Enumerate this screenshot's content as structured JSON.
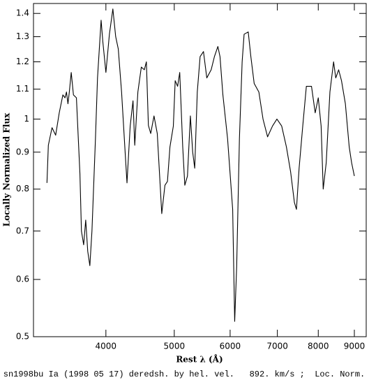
{
  "chart_data": {
    "type": "line",
    "title": "sn1998bu Ia (1998 05 17) deredsh. by hel. vel.   892. km/s ;  Loc. Norm.",
    "xlabel": "Rest λ (Å)",
    "ylabel": "Locally Normalized Flux",
    "xscale": "log",
    "yscale": "log",
    "xlim": [
      3158,
      9355
    ],
    "ylim": [
      0.5,
      1.445
    ],
    "xticks": [
      4000,
      5000,
      6000,
      7000,
      8000,
      9000
    ],
    "yticks": [
      0.5,
      0.6,
      0.7,
      0.8,
      0.9,
      1,
      1.1,
      1.2,
      1.3,
      1.4
    ],
    "color": "#000000",
    "x": [
      3300,
      3315,
      3355,
      3395,
      3435,
      3476,
      3500,
      3517,
      3534,
      3550,
      3572,
      3598,
      3633,
      3675,
      3693,
      3720,
      3745,
      3770,
      3796,
      3822,
      3866,
      3892,
      3938,
      3960,
      4000,
      4046,
      4092,
      4130,
      4165,
      4210,
      4260,
      4285,
      4330,
      4370,
      4395,
      4440,
      4490,
      4535,
      4565,
      4595,
      4630,
      4680,
      4730,
      4800,
      4850,
      4890,
      4930,
      4985,
      5015,
      5055,
      5090,
      5140,
      5175,
      5220,
      5270,
      5310,
      5345,
      5390,
      5440,
      5500,
      5560,
      5640,
      5700,
      5765,
      5805,
      5860,
      5950,
      6050,
      6090,
      6130,
      6185,
      6240,
      6280,
      6365,
      6420,
      6490,
      6590,
      6680,
      6780,
      6890,
      6990,
      7100,
      7210,
      7310,
      7400,
      7450,
      7515,
      7605,
      7695,
      7825,
      7920,
      8000,
      8075,
      8130,
      8210,
      8310,
      8410,
      8470,
      8550,
      8630,
      8740,
      8850,
      8920,
      9000
    ],
    "values": [
      0.816,
      0.92,
      0.973,
      0.95,
      1.02,
      1.08,
      1.07,
      1.09,
      1.05,
      1.09,
      1.16,
      1.08,
      1.07,
      0.84,
      0.7,
      0.67,
      0.725,
      0.656,
      0.627,
      0.7,
      0.94,
      1.14,
      1.37,
      1.28,
      1.16,
      1.31,
      1.42,
      1.3,
      1.25,
      1.09,
      0.897,
      0.816,
      0.978,
      1.06,
      0.92,
      1.09,
      1.18,
      1.17,
      1.2,
      0.98,
      0.955,
      1.01,
      0.955,
      0.74,
      0.81,
      0.82,
      0.915,
      0.978,
      1.13,
      1.11,
      1.16,
      0.915,
      0.81,
      0.834,
      1.01,
      0.9,
      0.855,
      1.09,
      1.22,
      1.24,
      1.14,
      1.17,
      1.22,
      1.26,
      1.22,
      1.08,
      0.94,
      0.75,
      0.525,
      0.627,
      0.94,
      1.2,
      1.31,
      1.32,
      1.22,
      1.12,
      1.09,
      1.0,
      0.945,
      0.978,
      1.0,
      0.978,
      0.915,
      0.845,
      0.767,
      0.75,
      0.855,
      0.978,
      1.11,
      1.11,
      1.02,
      1.07,
      0.978,
      0.8,
      0.87,
      1.09,
      1.2,
      1.14,
      1.17,
      1.13,
      1.05,
      0.915,
      0.87,
      0.834
    ]
  }
}
